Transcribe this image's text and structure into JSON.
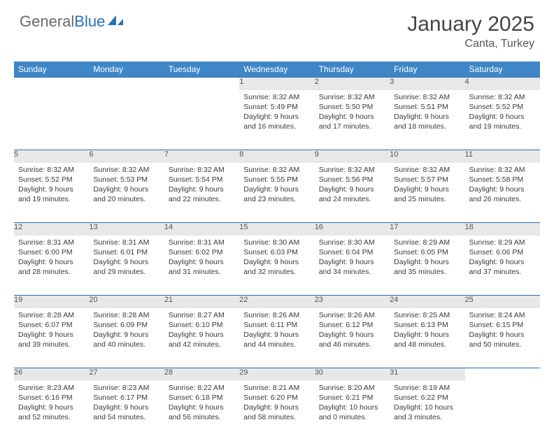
{
  "brand": {
    "name1": "General",
    "name2": "Blue"
  },
  "title": "January 2025",
  "location": "Canta, Turkey",
  "day_headers": [
    "Sunday",
    "Monday",
    "Tuesday",
    "Wednesday",
    "Thursday",
    "Friday",
    "Saturday"
  ],
  "colors": {
    "header_bg": "#3f86c6",
    "rule": "#2a6fb5",
    "daynum_bg": "#e8e8e8"
  },
  "weeks": [
    [
      {
        "n": "",
        "lines": []
      },
      {
        "n": "",
        "lines": []
      },
      {
        "n": "",
        "lines": []
      },
      {
        "n": "1",
        "lines": [
          "Sunrise: 8:32 AM",
          "Sunset: 5:49 PM",
          "Daylight: 9 hours",
          "and 16 minutes."
        ]
      },
      {
        "n": "2",
        "lines": [
          "Sunrise: 8:32 AM",
          "Sunset: 5:50 PM",
          "Daylight: 9 hours",
          "and 17 minutes."
        ]
      },
      {
        "n": "3",
        "lines": [
          "Sunrise: 8:32 AM",
          "Sunset: 5:51 PM",
          "Daylight: 9 hours",
          "and 18 minutes."
        ]
      },
      {
        "n": "4",
        "lines": [
          "Sunrise: 8:32 AM",
          "Sunset: 5:52 PM",
          "Daylight: 9 hours",
          "and 19 minutes."
        ]
      }
    ],
    [
      {
        "n": "5",
        "lines": [
          "Sunrise: 8:32 AM",
          "Sunset: 5:52 PM",
          "Daylight: 9 hours",
          "and 19 minutes."
        ]
      },
      {
        "n": "6",
        "lines": [
          "Sunrise: 8:32 AM",
          "Sunset: 5:53 PM",
          "Daylight: 9 hours",
          "and 20 minutes."
        ]
      },
      {
        "n": "7",
        "lines": [
          "Sunrise: 8:32 AM",
          "Sunset: 5:54 PM",
          "Daylight: 9 hours",
          "and 22 minutes."
        ]
      },
      {
        "n": "8",
        "lines": [
          "Sunrise: 8:32 AM",
          "Sunset: 5:55 PM",
          "Daylight: 9 hours",
          "and 23 minutes."
        ]
      },
      {
        "n": "9",
        "lines": [
          "Sunrise: 8:32 AM",
          "Sunset: 5:56 PM",
          "Daylight: 9 hours",
          "and 24 minutes."
        ]
      },
      {
        "n": "10",
        "lines": [
          "Sunrise: 8:32 AM",
          "Sunset: 5:57 PM",
          "Daylight: 9 hours",
          "and 25 minutes."
        ]
      },
      {
        "n": "11",
        "lines": [
          "Sunrise: 8:32 AM",
          "Sunset: 5:58 PM",
          "Daylight: 9 hours",
          "and 26 minutes."
        ]
      }
    ],
    [
      {
        "n": "12",
        "lines": [
          "Sunrise: 8:31 AM",
          "Sunset: 6:00 PM",
          "Daylight: 9 hours",
          "and 28 minutes."
        ]
      },
      {
        "n": "13",
        "lines": [
          "Sunrise: 8:31 AM",
          "Sunset: 6:01 PM",
          "Daylight: 9 hours",
          "and 29 minutes."
        ]
      },
      {
        "n": "14",
        "lines": [
          "Sunrise: 8:31 AM",
          "Sunset: 6:02 PM",
          "Daylight: 9 hours",
          "and 31 minutes."
        ]
      },
      {
        "n": "15",
        "lines": [
          "Sunrise: 8:30 AM",
          "Sunset: 6:03 PM",
          "Daylight: 9 hours",
          "and 32 minutes."
        ]
      },
      {
        "n": "16",
        "lines": [
          "Sunrise: 8:30 AM",
          "Sunset: 6:04 PM",
          "Daylight: 9 hours",
          "and 34 minutes."
        ]
      },
      {
        "n": "17",
        "lines": [
          "Sunrise: 8:29 AM",
          "Sunset: 6:05 PM",
          "Daylight: 9 hours",
          "and 35 minutes."
        ]
      },
      {
        "n": "18",
        "lines": [
          "Sunrise: 8:29 AM",
          "Sunset: 6:06 PM",
          "Daylight: 9 hours",
          "and 37 minutes."
        ]
      }
    ],
    [
      {
        "n": "19",
        "lines": [
          "Sunrise: 8:28 AM",
          "Sunset: 6:07 PM",
          "Daylight: 9 hours",
          "and 39 minutes."
        ]
      },
      {
        "n": "20",
        "lines": [
          "Sunrise: 8:28 AM",
          "Sunset: 6:09 PM",
          "Daylight: 9 hours",
          "and 40 minutes."
        ]
      },
      {
        "n": "21",
        "lines": [
          "Sunrise: 8:27 AM",
          "Sunset: 6:10 PM",
          "Daylight: 9 hours",
          "and 42 minutes."
        ]
      },
      {
        "n": "22",
        "lines": [
          "Sunrise: 8:26 AM",
          "Sunset: 6:11 PM",
          "Daylight: 9 hours",
          "and 44 minutes."
        ]
      },
      {
        "n": "23",
        "lines": [
          "Sunrise: 8:26 AM",
          "Sunset: 6:12 PM",
          "Daylight: 9 hours",
          "and 46 minutes."
        ]
      },
      {
        "n": "24",
        "lines": [
          "Sunrise: 8:25 AM",
          "Sunset: 6:13 PM",
          "Daylight: 9 hours",
          "and 48 minutes."
        ]
      },
      {
        "n": "25",
        "lines": [
          "Sunrise: 8:24 AM",
          "Sunset: 6:15 PM",
          "Daylight: 9 hours",
          "and 50 minutes."
        ]
      }
    ],
    [
      {
        "n": "26",
        "lines": [
          "Sunrise: 8:23 AM",
          "Sunset: 6:16 PM",
          "Daylight: 9 hours",
          "and 52 minutes."
        ]
      },
      {
        "n": "27",
        "lines": [
          "Sunrise: 8:23 AM",
          "Sunset: 6:17 PM",
          "Daylight: 9 hours",
          "and 54 minutes."
        ]
      },
      {
        "n": "28",
        "lines": [
          "Sunrise: 8:22 AM",
          "Sunset: 6:18 PM",
          "Daylight: 9 hours",
          "and 56 minutes."
        ]
      },
      {
        "n": "29",
        "lines": [
          "Sunrise: 8:21 AM",
          "Sunset: 6:20 PM",
          "Daylight: 9 hours",
          "and 58 minutes."
        ]
      },
      {
        "n": "30",
        "lines": [
          "Sunrise: 8:20 AM",
          "Sunset: 6:21 PM",
          "Daylight: 10 hours",
          "and 0 minutes."
        ]
      },
      {
        "n": "31",
        "lines": [
          "Sunrise: 8:19 AM",
          "Sunset: 6:22 PM",
          "Daylight: 10 hours",
          "and 3 minutes."
        ]
      },
      {
        "n": "",
        "lines": []
      }
    ]
  ]
}
